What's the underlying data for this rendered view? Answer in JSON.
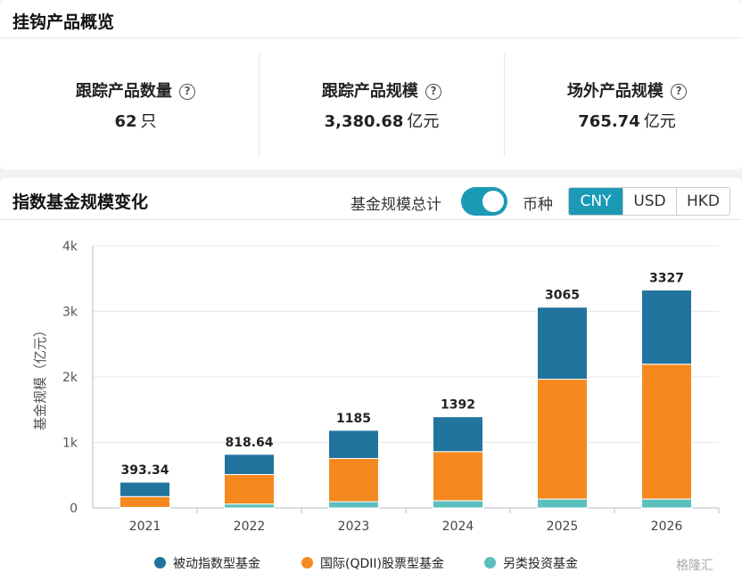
{
  "overview": {
    "title": "挂钩产品概览",
    "help_glyph": "?",
    "metrics": [
      {
        "label": "跟踪产品数量",
        "value": "62",
        "unit": "只"
      },
      {
        "label": "跟踪产品规模",
        "value": "3,380.68",
        "unit": "亿元"
      },
      {
        "label": "场外产品规模",
        "value": "765.74",
        "unit": "亿元"
      }
    ]
  },
  "scale_section": {
    "title": "指数基金规模变化",
    "toggle_label": "基金规模总计",
    "toggle_on": true,
    "currency_label": "币种",
    "currencies": [
      "CNY",
      "USD",
      "HKD"
    ],
    "selected_currency": "CNY",
    "accent_color": "#1a9ab5"
  },
  "chart_data": {
    "type": "bar",
    "stacked": true,
    "categories": [
      "2021",
      "2022",
      "2023",
      "2024",
      "2025",
      "2026"
    ],
    "series": [
      {
        "name": "另类投资基金",
        "color": "#5bc0be",
        "values": [
          8,
          60,
          95,
          110,
          135,
          135
        ]
      },
      {
        "name": "国际(QDII)股票型基金",
        "color": "#f5891f",
        "values": [
          165,
          450,
          660,
          750,
          1830,
          2060
        ]
      },
      {
        "name": "被动指数型基金",
        "color": "#21749d",
        "values": [
          220.34,
          308.64,
          430,
          532,
          1100,
          1132
        ]
      }
    ],
    "totals": [
      "393.34",
      "818.64",
      "1185",
      "1392",
      "3065",
      "3327"
    ],
    "ylabel": "基金规模（亿元）",
    "ylim": [
      0,
      4000
    ],
    "yticks": [
      0,
      1000,
      2000,
      3000,
      4000
    ],
    "ytick_labels": [
      "0",
      "1k",
      "2k",
      "3k",
      "4k"
    ],
    "grid": true,
    "legend_position": "bottom",
    "legend_order": [
      "被动指数型基金",
      "国际(QDII)股票型基金",
      "另类投资基金"
    ]
  },
  "watermark": "格隆汇"
}
